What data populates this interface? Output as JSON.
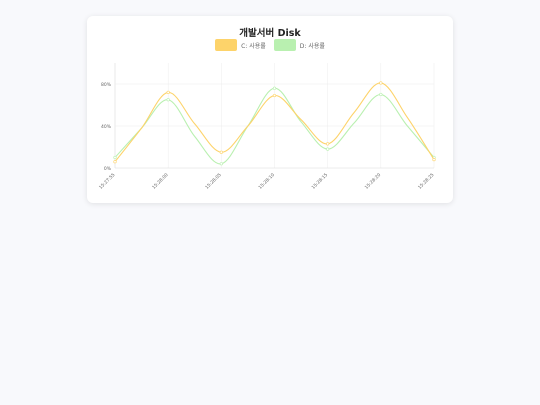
{
  "chart_data": {
    "type": "line",
    "title": "개발서버 Disk",
    "legend_position": "top",
    "x": [
      "15:27:55",
      "15:27:57.5",
      "15:28:00",
      "15:28:02.5",
      "15:28:05",
      "15:28:07.5",
      "15:28:10",
      "15:28:12.5",
      "15:28:15",
      "15:28:17.5",
      "15:28:20",
      "15:28:22.5",
      "15:28:25"
    ],
    "x_ticks": [
      "15:27:55",
      "15:28:00",
      "15:28:05",
      "15:28:10",
      "15:28:15",
      "15:28:20",
      "15:28:25"
    ],
    "y_ticks": [
      "0%",
      "40%",
      "80%"
    ],
    "ylim": [
      0,
      100
    ],
    "grid": true,
    "series": [
      {
        "name": "C: 사용률",
        "color": "#fdd36a",
        "values": [
          6,
          38,
          72,
          42,
          15,
          40,
          69,
          46,
          23,
          53,
          81,
          48,
          8
        ]
      },
      {
        "name": "D: 사용률",
        "color": "#b9f0b0",
        "values": [
          10,
          38,
          65,
          30,
          4,
          40,
          76,
          44,
          18,
          43,
          70,
          40,
          10
        ]
      }
    ]
  }
}
